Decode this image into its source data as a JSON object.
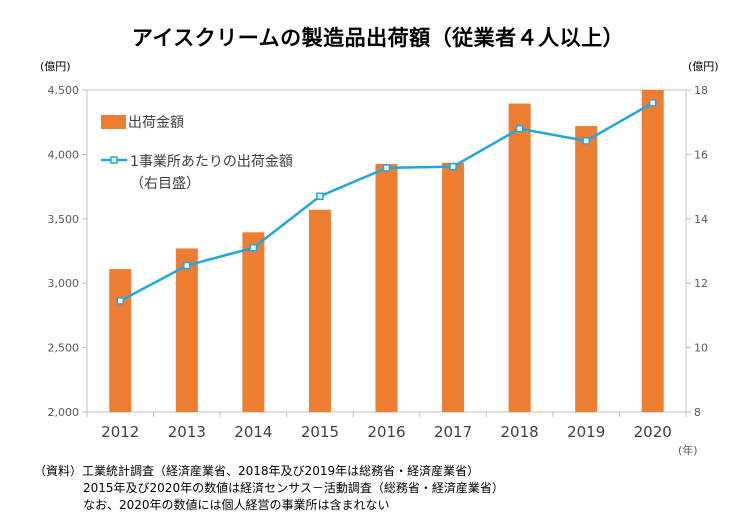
{
  "title": "アイスクリームの製造品出荷額（従業者４人以上）",
  "unit_left": "(億円)",
  "unit_right": "(億円)",
  "x_unit": "(年)",
  "source": {
    "label": "（資料）",
    "line1": "工業統計調査（経済産業省、2018年及び2019年は総務省・経済産業省）",
    "line2": "2015年及び2020年の数値は経済センサス－活動調査（総務省・経済産業省）",
    "line3": "なお、2020年の数値には個人経営の事業所は含まれない"
  },
  "chart_data": {
    "type": "bar",
    "categories": [
      "2012",
      "2013",
      "2014",
      "2015",
      "2016",
      "2017",
      "2018",
      "2019",
      "2020"
    ],
    "series": [
      {
        "name": "出荷金額",
        "type": "bar",
        "axis": "left",
        "color": "#ED7D31",
        "values": [
          3110,
          3270,
          3395,
          3570,
          3925,
          3935,
          4395,
          4220,
          4500
        ]
      },
      {
        "name": "1事業所あたりの出荷金額",
        "name_line2": "（右目盛）",
        "type": "line",
        "axis": "right",
        "color": "#1FA7E0",
        "values": [
          11.45,
          12.55,
          13.1,
          14.7,
          15.58,
          15.62,
          16.8,
          16.42,
          17.6
        ]
      }
    ],
    "y_left": {
      "min": 2000,
      "max": 4500,
      "ticks": [
        "2,000",
        "2,500",
        "3,000",
        "3,500",
        "4,000",
        "4,500"
      ]
    },
    "y_right": {
      "min": 8,
      "max": 18,
      "ticks": [
        "8",
        "10",
        "12",
        "14",
        "16",
        "18"
      ]
    },
    "grid": false,
    "legend": "top-left"
  }
}
